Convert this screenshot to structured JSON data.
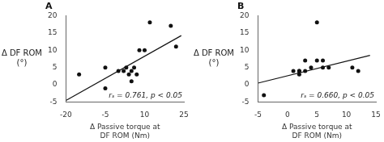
{
  "chart_data": [
    {
      "type": "scatter",
      "title": "A",
      "xlabel": "Δ Passive torque at\nDF ROM (Nm)",
      "ylabel": "Δ DF ROM\n(°)",
      "annotations": [
        "rₛ = 0.761, p < 0.05"
      ],
      "xlim": [
        -20,
        25
      ],
      "ylim": [
        -5,
        20
      ],
      "xticks": [
        -20,
        -5,
        10,
        25
      ],
      "yticks": [
        -5,
        0,
        5,
        10,
        15,
        20
      ],
      "grid": false,
      "series": [
        {
          "type": "scatter",
          "color": "#111111",
          "x": [
            -15,
            -5,
            -5,
            0,
            2,
            3,
            4,
            5,
            5,
            6,
            7,
            8,
            10,
            12,
            20,
            22
          ],
          "values": [
            3,
            5,
            -1,
            4,
            4,
            5,
            3,
            4,
            1,
            5,
            3,
            10,
            10,
            18,
            17,
            11
          ]
        },
        {
          "type": "line",
          "color": "#111111",
          "x": [
            -20,
            24
          ],
          "values": [
            -4.5,
            14.2
          ]
        }
      ]
    },
    {
      "type": "scatter",
      "title": "B",
      "xlabel": "Δ Passive torque at\nDF ROM (Nm)",
      "ylabel": "Δ DF ROM\n(°)",
      "annotations": [
        "rₛ = 0.660, p < 0.05"
      ],
      "xlim": [
        -5,
        15
      ],
      "ylim": [
        -5,
        20
      ],
      "xticks": [
        -5,
        0,
        5,
        10,
        15
      ],
      "yticks": [
        -5,
        0,
        5,
        10,
        15,
        20
      ],
      "grid": false,
      "series": [
        {
          "type": "scatter",
          "color": "#111111",
          "x": [
            -4,
            1,
            2,
            2,
            2,
            3,
            3,
            4,
            5,
            5,
            6,
            6,
            7,
            11,
            12
          ],
          "values": [
            -3,
            4,
            3,
            4,
            4,
            4,
            7,
            5,
            18,
            7,
            5,
            7,
            5,
            5,
            4
          ]
        },
        {
          "type": "line",
          "color": "#111111",
          "x": [
            -5,
            14
          ],
          "values": [
            0.5,
            8.5
          ]
        }
      ]
    }
  ]
}
